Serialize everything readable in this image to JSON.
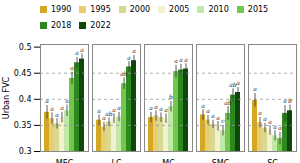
{
  "chart_data": {
    "type": "bar",
    "categories": [
      "MEC",
      "LC",
      "MC",
      "SMC",
      "SC"
    ],
    "series": [
      {
        "name": "1990",
        "color": "#d4a820",
        "values": [
          0.375,
          0.36,
          0.365,
          0.37,
          0.398
        ],
        "errors": [
          0.013,
          0.01,
          0.01,
          0.01,
          0.013
        ],
        "labels": [
          "a",
          "a",
          "a",
          "a",
          "a"
        ]
      },
      {
        "name": "1995",
        "color": "#e8ce70",
        "values": [
          0.363,
          0.347,
          0.368,
          0.36,
          0.355
        ],
        "errors": [
          0.011,
          0.009,
          0.01,
          0.009,
          0.01
        ],
        "labels": [
          "a",
          "a",
          "a",
          "a",
          "a"
        ]
      },
      {
        "name": "2000",
        "color": "#d8d890",
        "values": [
          0.353,
          0.356,
          0.365,
          0.352,
          0.345
        ],
        "errors": [
          0.01,
          0.008,
          0.009,
          0.008,
          0.009
        ],
        "labels": [
          "a",
          "ab",
          "a",
          "a",
          "a"
        ]
      },
      {
        "name": "2005",
        "color": "#f2f2d0",
        "values": [
          0.365,
          0.363,
          0.363,
          0.348,
          0.34
        ],
        "errors": [
          0.01,
          0.009,
          0.009,
          0.009,
          0.009
        ],
        "labels": [
          "a",
          "a",
          "a",
          "a",
          "a"
        ]
      },
      {
        "name": "2010",
        "color": "#c0e8a8",
        "values": [
          0.378,
          0.366,
          0.386,
          0.34,
          0.33
        ],
        "errors": [
          0.011,
          0.009,
          0.01,
          0.01,
          0.01
        ],
        "labels": [
          "a",
          "a",
          "b",
          "c",
          "a"
        ]
      },
      {
        "name": "2015",
        "color": "#72c848",
        "values": [
          0.44,
          0.43,
          0.453,
          0.373,
          0.325
        ],
        "errors": [
          0.012,
          0.011,
          0.012,
          0.013,
          0.012
        ],
        "labels": [
          "a",
          "ab",
          "a",
          "ab",
          "a"
        ]
      },
      {
        "name": "2018",
        "color": "#2e8820",
        "values": [
          0.47,
          0.462,
          0.456,
          0.408,
          0.373
        ],
        "errors": [
          0.01,
          0.01,
          0.011,
          0.012,
          0.015
        ],
        "labels": [
          "a",
          "a",
          "a",
          "ab",
          "a"
        ]
      },
      {
        "name": "2022",
        "color": "#0e4808",
        "values": [
          0.477,
          0.474,
          0.458,
          0.413,
          0.378
        ],
        "errors": [
          0.01,
          0.01,
          0.01,
          0.01,
          0.011
        ],
        "labels": [
          "a",
          "a",
          "a",
          "a",
          "b"
        ]
      }
    ],
    "hlines": [
      0.35,
      0.4,
      0.45
    ],
    "ylabel": "Urban FVC",
    "ylim": [
      0.3,
      0.505
    ],
    "yticks": [
      0.3,
      0.35,
      0.4,
      0.45,
      0.5
    ],
    "grid": false,
    "legend": "top"
  }
}
